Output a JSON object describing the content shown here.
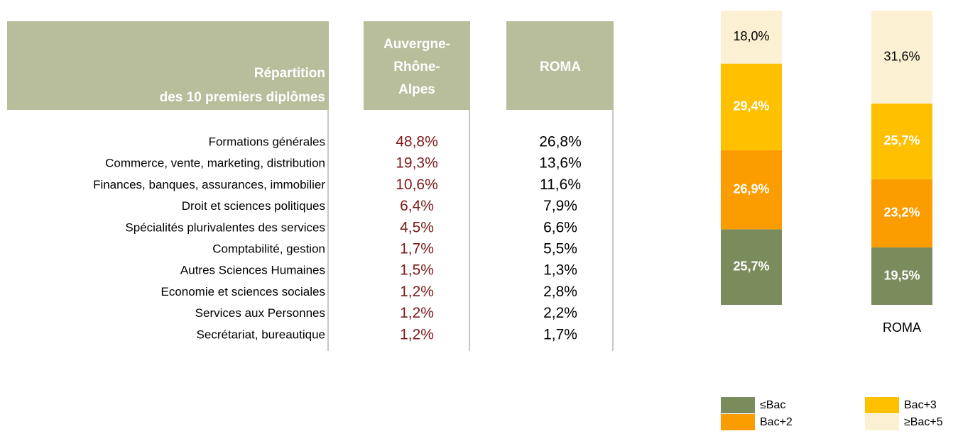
{
  "table": {
    "header": [
      [
        "Répartition",
        "des 10 premiers diplômes"
      ],
      [
        "Auvergne-",
        "Rhône-",
        "Alpes"
      ],
      [
        "ROMA"
      ]
    ],
    "rows": [
      [
        "Formations générales",
        "48,8%",
        "26,8%"
      ],
      [
        "Commerce, vente, marketing, distribution",
        "19,3%",
        "13,6%"
      ],
      [
        "Finances, banques, assurances, immobilier",
        "10,6%",
        "11,6%"
      ],
      [
        "Droit et sciences politiques",
        "6,4%",
        "7,9%"
      ],
      [
        "Spécialités plurivalentes des services",
        "4,5%",
        "6,6%"
      ],
      [
        "Comptabilité, gestion",
        "1,7%",
        "5,5%"
      ],
      [
        "Autres Sciences Humaines",
        "1,5%",
        "1,3%"
      ],
      [
        "Economie et sciences sociales",
        "1,2%",
        "2,8%"
      ],
      [
        "Services aux Personnes",
        "1,2%",
        "2,2%"
      ],
      [
        "Secrétariat, bureautique",
        "1,2%",
        "1,7%"
      ]
    ]
  },
  "chart_data": {
    "type": "stacked-bar",
    "categories": [
      null,
      "ROMA"
    ],
    "series": [
      {
        "name": "≤Bac",
        "color": "#7b8c5c",
        "values": [
          25.7,
          19.5
        ],
        "value_labels": [
          "25,7%",
          "19,5%"
        ]
      },
      {
        "name": "Bac+2",
        "color": "#fb9d00",
        "values": [
          26.9,
          23.2
        ],
        "value_labels": [
          "26,9%",
          "23,2%"
        ]
      },
      {
        "name": "Bac+3",
        "color": "#ffc000",
        "values": [
          29.4,
          25.7
        ],
        "value_labels": [
          "29,4%",
          "25,7%"
        ]
      },
      {
        "name": "≥Bac+5",
        "color": "#fbf0d2",
        "values": [
          18.0,
          31.6
        ],
        "value_labels": [
          "18,0%",
          "31,6%"
        ]
      }
    ],
    "legend": "bottom-right"
  }
}
